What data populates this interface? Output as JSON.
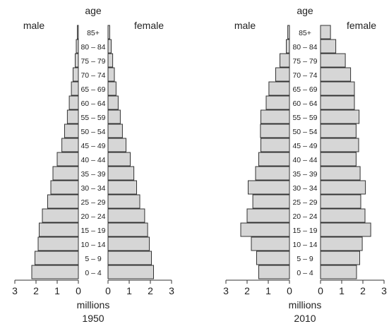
{
  "chart_data": [
    {
      "type": "bar",
      "orientation": "horizontal-pyramid",
      "title": "age",
      "xlabel": "millions",
      "caption": "1950",
      "xlim": [
        0,
        3
      ],
      "xticks": [
        3,
        2,
        1,
        0
      ],
      "categories": [
        "85+",
        "80 – 84",
        "75 – 79",
        "70 – 74",
        "65 – 69",
        "60 – 64",
        "55 – 59",
        "50 – 54",
        "45 – 49",
        "40 – 44",
        "35 – 39",
        "30 – 34",
        "25 – 29",
        "20 – 24",
        "15 – 19",
        "10 – 14",
        "5 – 9",
        "0 – 4"
      ],
      "series": [
        {
          "name": "male",
          "side": "left",
          "values": [
            0.05,
            0.1,
            0.15,
            0.25,
            0.33,
            0.43,
            0.52,
            0.65,
            0.78,
            1.0,
            1.2,
            1.3,
            1.45,
            1.7,
            1.85,
            1.9,
            2.05,
            2.2
          ]
        },
        {
          "name": "female",
          "side": "right",
          "values": [
            0.08,
            0.15,
            0.22,
            0.3,
            0.38,
            0.48,
            0.58,
            0.68,
            0.85,
            1.05,
            1.22,
            1.35,
            1.5,
            1.73,
            1.87,
            1.95,
            2.05,
            2.15
          ]
        }
      ]
    },
    {
      "type": "bar",
      "orientation": "horizontal-pyramid",
      "title": "age",
      "xlabel": "millions",
      "caption": "2010",
      "xlim": [
        0,
        3
      ],
      "xticks": [
        3,
        2,
        1,
        0
      ],
      "categories": [
        "85+",
        "80 – 84",
        "75 – 79",
        "70 – 74",
        "65 – 69",
        "60 – 64",
        "55 – 59",
        "50 – 54",
        "45 – 49",
        "40 – 44",
        "35 – 39",
        "30 – 34",
        "25 – 29",
        "20 – 24",
        "15 – 19",
        "10 – 14",
        "5 – 9",
        "0 – 4"
      ],
      "series": [
        {
          "name": "male",
          "side": "left",
          "values": [
            0.08,
            0.15,
            0.45,
            0.65,
            0.97,
            1.1,
            1.35,
            1.37,
            1.35,
            1.45,
            1.6,
            1.95,
            1.73,
            2.0,
            2.3,
            1.8,
            1.55,
            1.45
          ]
        },
        {
          "name": "female",
          "side": "right",
          "values": [
            0.47,
            0.72,
            1.17,
            1.42,
            1.6,
            1.6,
            1.82,
            1.68,
            1.8,
            1.68,
            1.87,
            2.12,
            1.9,
            2.1,
            2.37,
            1.97,
            1.85,
            1.7
          ]
        }
      ]
    }
  ]
}
